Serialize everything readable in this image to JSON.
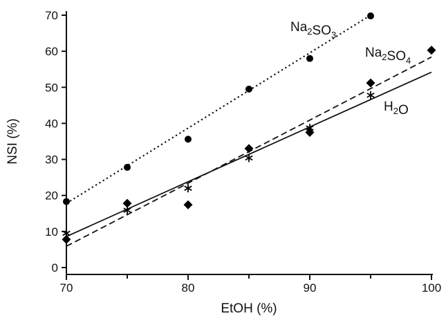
{
  "chart_data": {
    "type": "scatter",
    "title": "",
    "xlabel": "EtOH (%)",
    "ylabel": "NSI (%)",
    "xlim": [
      70,
      100
    ],
    "ylim": [
      0,
      70
    ],
    "xticks": [
      70,
      80,
      90,
      100
    ],
    "yticks": [
      0,
      10,
      20,
      30,
      40,
      50,
      60,
      70
    ],
    "grid": false,
    "legend": "none",
    "series": [
      {
        "label_parts": [
          "Na",
          "2",
          "SO",
          "3"
        ],
        "marker": "circle",
        "line_style": "dotted",
        "x": [
          70,
          75,
          80,
          85,
          90,
          95
        ],
        "y": [
          18.3,
          27.8,
          35.6,
          49.5,
          58.0,
          69.8
        ],
        "fit": {
          "x": [
            70,
            95
          ],
          "y": [
            17.8,
            70.0
          ]
        }
      },
      {
        "label_parts": [
          "Na",
          "2",
          "SO",
          "4"
        ],
        "marker": "diamond",
        "line_style": "dashed",
        "x": [
          70,
          75,
          80,
          85,
          90,
          95,
          100
        ],
        "y": [
          7.8,
          17.8,
          17.4,
          33.0,
          37.5,
          51.2,
          60.3
        ],
        "fit": {
          "x": [
            70,
            100
          ],
          "y": [
            5.9,
            58.4
          ]
        }
      },
      {
        "label_parts": [
          "H",
          "2",
          "O"
        ],
        "marker": "asterisk",
        "line_style": "solid",
        "x": [
          70,
          75,
          80,
          85,
          90,
          95
        ],
        "y": [
          9.5,
          15.9,
          22.0,
          30.4,
          38.7,
          47.8
        ],
        "fit": {
          "x": [
            70,
            100
          ],
          "y": [
            8.6,
            54.2
          ]
        }
      }
    ]
  }
}
